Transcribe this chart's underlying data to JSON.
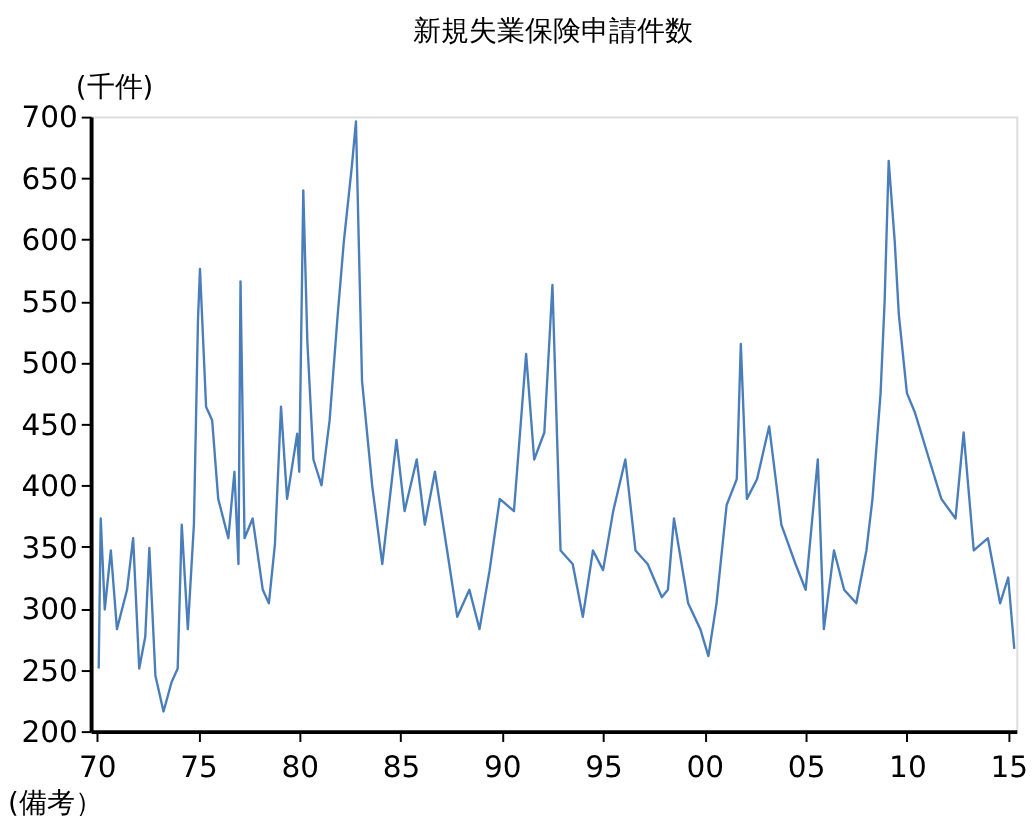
{
  "chart_data": {
    "type": "line",
    "title": "新規失業保険申請件数",
    "ylabel": "(千件)",
    "annotations": [
      "(備考）"
    ],
    "x": [
      1970.1,
      1970.2,
      1970.4,
      1970.7,
      1971.0,
      1971.5,
      1971.8,
      1972.1,
      1972.4,
      1972.6,
      1972.9,
      1973.3,
      1973.7,
      1974.0,
      1974.2,
      1974.5,
      1974.8,
      1975.0,
      1975.1,
      1975.4,
      1975.7,
      1976.0,
      1976.5,
      1976.8,
      1977.0,
      1977.1,
      1977.3,
      1977.7,
      1978.2,
      1978.5,
      1978.8,
      1979.1,
      1979.4,
      1979.9,
      1980.0,
      1980.2,
      1980.4,
      1980.7,
      1981.1,
      1981.5,
      1981.9,
      1982.2,
      1982.6,
      1982.8,
      1983.1,
      1983.6,
      1984.1,
      1984.8,
      1985.2,
      1985.8,
      1986.2,
      1986.7,
      1987.3,
      1987.8,
      1988.4,
      1988.9,
      1989.4,
      1989.9,
      1990.6,
      1991.0,
      1991.2,
      1991.6,
      1992.1,
      1992.5,
      1992.9,
      1993.5,
      1994.0,
      1994.5,
      1995.0,
      1995.5,
      1996.1,
      1996.6,
      1997.2,
      1997.9,
      1998.2,
      1998.5,
      1999.2,
      1999.8,
      2000.2,
      2000.6,
      2001.1,
      2001.6,
      2001.8,
      2002.1,
      2002.6,
      2003.2,
      2003.8,
      2004.5,
      2005.0,
      2005.6,
      2005.9,
      2006.4,
      2006.9,
      2007.5,
      2008.0,
      2008.3,
      2008.7,
      2008.9,
      2009.1,
      2009.4,
      2009.6,
      2010.0,
      2010.4,
      2011.1,
      2011.7,
      2012.4,
      2012.8,
      2013.3,
      2014.0,
      2014.6,
      2015.0,
      2015.3
    ],
    "series": [
      {
        "color": "#4a7ebb",
        "values": [
          251,
          373,
          299,
          347,
          283,
          315,
          357,
          251,
          277,
          349,
          245,
          216,
          240,
          251,
          368,
          283,
          368,
          534,
          576,
          464,
          453,
          389,
          357,
          411,
          336,
          566,
          357,
          373,
          315,
          304,
          352,
          464,
          389,
          442,
          411,
          640,
          517,
          421,
          400,
          453,
          539,
          598,
          660,
          696,
          485,
          400,
          336,
          437,
          379,
          421,
          368,
          411,
          347,
          293,
          315,
          283,
          331,
          389,
          379,
          464,
          507,
          421,
          443,
          563,
          347,
          336,
          293,
          347,
          331,
          379,
          421,
          347,
          336,
          309,
          315,
          373,
          304,
          283,
          261,
          304,
          384,
          405,
          515,
          389,
          405,
          448,
          368,
          336,
          315,
          421,
          283,
          347,
          315,
          304,
          347,
          389,
          475,
          550,
          664,
          598,
          539,
          475,
          459,
          421,
          389,
          373,
          443,
          347,
          357,
          304,
          325,
          267
        ]
      }
    ],
    "xlim": [
      1969.7,
      2015.4
    ],
    "xticks": [
      {
        "value": 1970,
        "label": "70"
      },
      {
        "value": 1975,
        "label": "75"
      },
      {
        "value": 1980,
        "label": "80"
      },
      {
        "value": 1985,
        "label": "85"
      },
      {
        "value": 1990,
        "label": "90"
      },
      {
        "value": 1995,
        "label": "95"
      },
      {
        "value": 2000,
        "label": "00"
      },
      {
        "value": 2005,
        "label": "05"
      },
      {
        "value": 2010,
        "label": "10"
      },
      {
        "value": 2015,
        "label": "15"
      }
    ],
    "ylim": [
      200,
      700
    ],
    "yticks": [
      200,
      250,
      300,
      350,
      400,
      450,
      500,
      550,
      600,
      650,
      700
    ],
    "grid": false,
    "line_style": "solid",
    "marker": "none"
  }
}
